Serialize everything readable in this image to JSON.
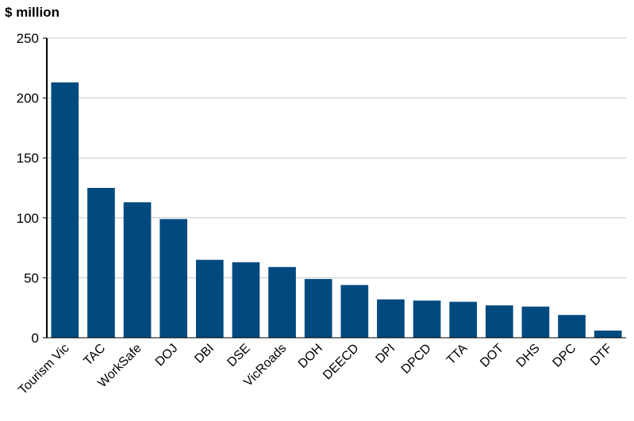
{
  "chart_data": {
    "type": "bar",
    "ylabel": "$ million",
    "ylim": [
      0,
      250
    ],
    "yticks": [
      0,
      50,
      100,
      150,
      200,
      250
    ],
    "grid": true,
    "bar_color": "#004a7f",
    "categories": [
      "Tourism Vic",
      "TAC",
      "WorkSafe",
      "DOJ",
      "DBI",
      "DSE",
      "VicRoads",
      "DOH",
      "DEECD",
      "DPI",
      "DPCD",
      "TTA",
      "DOT",
      "DHS",
      "DPC",
      "DTF"
    ],
    "values": [
      213,
      125,
      113,
      99,
      65,
      63,
      59,
      49,
      44,
      32,
      31,
      30,
      27,
      26,
      19,
      6
    ]
  }
}
